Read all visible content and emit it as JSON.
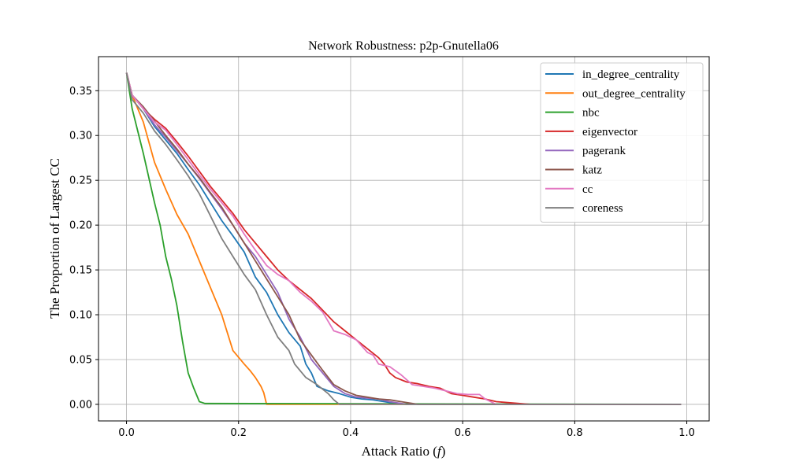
{
  "chart_data": {
    "type": "line",
    "title": "Network Robustness: p2p-Gnutella06",
    "xlabel": "Attack Ratio (",
    "xlabel_symbol": "f",
    "xlabel_close": ")",
    "ylabel": "The Proportion of Largest CC",
    "xlim": [
      -0.05,
      1.04
    ],
    "ylim": [
      -0.0185,
      0.388
    ],
    "xticks": [
      0.0,
      0.2,
      0.4,
      0.6,
      0.8,
      1.0
    ],
    "xtick_labels": [
      "0.0",
      "0.2",
      "0.4",
      "0.6",
      "0.8",
      "1.0"
    ],
    "yticks": [
      0.0,
      0.05,
      0.1,
      0.15,
      0.2,
      0.25,
      0.3,
      0.35
    ],
    "ytick_labels": [
      "0.00",
      "0.05",
      "0.10",
      "0.15",
      "0.20",
      "0.25",
      "0.30",
      "0.35"
    ],
    "grid": true,
    "legend_position": "top-right",
    "series": [
      {
        "name": "in_degree_centrality",
        "color": "#1f77b4",
        "points": [
          [
            0.0,
            0.37
          ],
          [
            0.01,
            0.345
          ],
          [
            0.03,
            0.33
          ],
          [
            0.05,
            0.31
          ],
          [
            0.07,
            0.295
          ],
          [
            0.09,
            0.28
          ],
          [
            0.11,
            0.262
          ],
          [
            0.13,
            0.245
          ],
          [
            0.15,
            0.225
          ],
          [
            0.17,
            0.205
          ],
          [
            0.19,
            0.188
          ],
          [
            0.21,
            0.17
          ],
          [
            0.23,
            0.142
          ],
          [
            0.25,
            0.125
          ],
          [
            0.27,
            0.1
          ],
          [
            0.29,
            0.08
          ],
          [
            0.31,
            0.065
          ],
          [
            0.32,
            0.045
          ],
          [
            0.33,
            0.035
          ],
          [
            0.34,
            0.02
          ],
          [
            0.36,
            0.015
          ],
          [
            0.38,
            0.012
          ],
          [
            0.4,
            0.008
          ],
          [
            0.42,
            0.006
          ],
          [
            0.44,
            0.005
          ],
          [
            0.46,
            0.003
          ],
          [
            0.48,
            0.001
          ],
          [
            0.5,
            0.0
          ],
          [
            0.99,
            0.0
          ]
        ]
      },
      {
        "name": "out_degree_centrality",
        "color": "#ff7f0e",
        "points": [
          [
            0.0,
            0.37
          ],
          [
            0.01,
            0.345
          ],
          [
            0.03,
            0.315
          ],
          [
            0.05,
            0.27
          ],
          [
            0.07,
            0.24
          ],
          [
            0.09,
            0.212
          ],
          [
            0.11,
            0.19
          ],
          [
            0.13,
            0.16
          ],
          [
            0.15,
            0.13
          ],
          [
            0.17,
            0.1
          ],
          [
            0.18,
            0.08
          ],
          [
            0.19,
            0.06
          ],
          [
            0.21,
            0.045
          ],
          [
            0.22,
            0.038
          ],
          [
            0.23,
            0.03
          ],
          [
            0.24,
            0.02
          ],
          [
            0.245,
            0.013
          ],
          [
            0.25,
            0.0
          ],
          [
            0.99,
            0.0
          ]
        ]
      },
      {
        "name": "nbc",
        "color": "#2ca02c",
        "points": [
          [
            0.0,
            0.37
          ],
          [
            0.01,
            0.33
          ],
          [
            0.03,
            0.28
          ],
          [
            0.05,
            0.225
          ],
          [
            0.06,
            0.2
          ],
          [
            0.07,
            0.165
          ],
          [
            0.08,
            0.14
          ],
          [
            0.09,
            0.11
          ],
          [
            0.1,
            0.07
          ],
          [
            0.11,
            0.035
          ],
          [
            0.12,
            0.018
          ],
          [
            0.13,
            0.003
          ],
          [
            0.14,
            0.001
          ],
          [
            0.99,
            0.0
          ]
        ]
      },
      {
        "name": "eigenvector",
        "color": "#d62728",
        "points": [
          [
            0.0,
            0.37
          ],
          [
            0.01,
            0.345
          ],
          [
            0.03,
            0.33
          ],
          [
            0.05,
            0.318
          ],
          [
            0.07,
            0.308
          ],
          [
            0.09,
            0.293
          ],
          [
            0.11,
            0.277
          ],
          [
            0.13,
            0.26
          ],
          [
            0.15,
            0.243
          ],
          [
            0.17,
            0.228
          ],
          [
            0.19,
            0.213
          ],
          [
            0.21,
            0.195
          ],
          [
            0.23,
            0.18
          ],
          [
            0.25,
            0.165
          ],
          [
            0.27,
            0.15
          ],
          [
            0.29,
            0.138
          ],
          [
            0.31,
            0.128
          ],
          [
            0.33,
            0.118
          ],
          [
            0.35,
            0.105
          ],
          [
            0.37,
            0.092
          ],
          [
            0.39,
            0.082
          ],
          [
            0.41,
            0.072
          ],
          [
            0.43,
            0.062
          ],
          [
            0.45,
            0.052
          ],
          [
            0.46,
            0.045
          ],
          [
            0.47,
            0.035
          ],
          [
            0.48,
            0.03
          ],
          [
            0.5,
            0.025
          ],
          [
            0.52,
            0.023
          ],
          [
            0.54,
            0.02
          ],
          [
            0.56,
            0.018
          ],
          [
            0.58,
            0.012
          ],
          [
            0.6,
            0.01
          ],
          [
            0.62,
            0.008
          ],
          [
            0.64,
            0.006
          ],
          [
            0.66,
            0.003
          ],
          [
            0.7,
            0.001
          ],
          [
            0.72,
            0.0
          ],
          [
            0.99,
            0.0
          ]
        ]
      },
      {
        "name": "pagerank",
        "color": "#9467bd",
        "points": [
          [
            0.0,
            0.37
          ],
          [
            0.01,
            0.345
          ],
          [
            0.03,
            0.33
          ],
          [
            0.05,
            0.312
          ],
          [
            0.07,
            0.298
          ],
          [
            0.09,
            0.283
          ],
          [
            0.11,
            0.268
          ],
          [
            0.13,
            0.252
          ],
          [
            0.15,
            0.235
          ],
          [
            0.17,
            0.218
          ],
          [
            0.19,
            0.2
          ],
          [
            0.21,
            0.18
          ],
          [
            0.23,
            0.165
          ],
          [
            0.25,
            0.145
          ],
          [
            0.27,
            0.125
          ],
          [
            0.29,
            0.095
          ],
          [
            0.31,
            0.075
          ],
          [
            0.33,
            0.05
          ],
          [
            0.35,
            0.035
          ],
          [
            0.37,
            0.02
          ],
          [
            0.39,
            0.012
          ],
          [
            0.41,
            0.008
          ],
          [
            0.43,
            0.007
          ],
          [
            0.45,
            0.006
          ],
          [
            0.47,
            0.003
          ],
          [
            0.5,
            0.0
          ],
          [
            0.99,
            0.0
          ]
        ]
      },
      {
        "name": "katz",
        "color": "#8c564b",
        "points": [
          [
            0.0,
            0.37
          ],
          [
            0.01,
            0.345
          ],
          [
            0.03,
            0.332
          ],
          [
            0.05,
            0.316
          ],
          [
            0.07,
            0.3
          ],
          [
            0.09,
            0.285
          ],
          [
            0.11,
            0.268
          ],
          [
            0.13,
            0.253
          ],
          [
            0.15,
            0.236
          ],
          [
            0.17,
            0.22
          ],
          [
            0.19,
            0.2
          ],
          [
            0.21,
            0.18
          ],
          [
            0.23,
            0.16
          ],
          [
            0.25,
            0.14
          ],
          [
            0.27,
            0.12
          ],
          [
            0.29,
            0.1
          ],
          [
            0.31,
            0.072
          ],
          [
            0.33,
            0.055
          ],
          [
            0.35,
            0.038
          ],
          [
            0.37,
            0.022
          ],
          [
            0.39,
            0.015
          ],
          [
            0.41,
            0.01
          ],
          [
            0.43,
            0.008
          ],
          [
            0.45,
            0.006
          ],
          [
            0.47,
            0.005
          ],
          [
            0.49,
            0.003
          ],
          [
            0.52,
            0.0
          ],
          [
            0.99,
            0.0
          ]
        ]
      },
      {
        "name": "cc",
        "color": "#e377c2",
        "points": [
          [
            0.0,
            0.37
          ],
          [
            0.01,
            0.345
          ],
          [
            0.03,
            0.33
          ],
          [
            0.05,
            0.315
          ],
          [
            0.07,
            0.306
          ],
          [
            0.09,
            0.29
          ],
          [
            0.11,
            0.273
          ],
          [
            0.13,
            0.256
          ],
          [
            0.15,
            0.24
          ],
          [
            0.17,
            0.225
          ],
          [
            0.19,
            0.21
          ],
          [
            0.21,
            0.19
          ],
          [
            0.23,
            0.172
          ],
          [
            0.25,
            0.155
          ],
          [
            0.27,
            0.145
          ],
          [
            0.29,
            0.138
          ],
          [
            0.31,
            0.125
          ],
          [
            0.33,
            0.115
          ],
          [
            0.35,
            0.103
          ],
          [
            0.37,
            0.082
          ],
          [
            0.39,
            0.078
          ],
          [
            0.41,
            0.072
          ],
          [
            0.43,
            0.058
          ],
          [
            0.44,
            0.055
          ],
          [
            0.45,
            0.045
          ],
          [
            0.47,
            0.042
          ],
          [
            0.49,
            0.033
          ],
          [
            0.51,
            0.022
          ],
          [
            0.53,
            0.02
          ],
          [
            0.55,
            0.018
          ],
          [
            0.57,
            0.015
          ],
          [
            0.59,
            0.012
          ],
          [
            0.61,
            0.011
          ],
          [
            0.63,
            0.011
          ],
          [
            0.64,
            0.006
          ],
          [
            0.65,
            0.003
          ],
          [
            0.66,
            0.0
          ],
          [
            0.99,
            0.0
          ]
        ]
      },
      {
        "name": "coreness",
        "color": "#7f7f7f",
        "points": [
          [
            0.0,
            0.37
          ],
          [
            0.01,
            0.34
          ],
          [
            0.03,
            0.325
          ],
          [
            0.05,
            0.305
          ],
          [
            0.07,
            0.29
          ],
          [
            0.09,
            0.273
          ],
          [
            0.11,
            0.255
          ],
          [
            0.13,
            0.235
          ],
          [
            0.15,
            0.21
          ],
          [
            0.17,
            0.185
          ],
          [
            0.19,
            0.165
          ],
          [
            0.21,
            0.145
          ],
          [
            0.23,
            0.128
          ],
          [
            0.25,
            0.1
          ],
          [
            0.27,
            0.075
          ],
          [
            0.29,
            0.06
          ],
          [
            0.3,
            0.045
          ],
          [
            0.32,
            0.03
          ],
          [
            0.34,
            0.022
          ],
          [
            0.36,
            0.012
          ],
          [
            0.37,
            0.005
          ],
          [
            0.38,
            0.0
          ],
          [
            0.99,
            0.0
          ]
        ]
      }
    ]
  }
}
